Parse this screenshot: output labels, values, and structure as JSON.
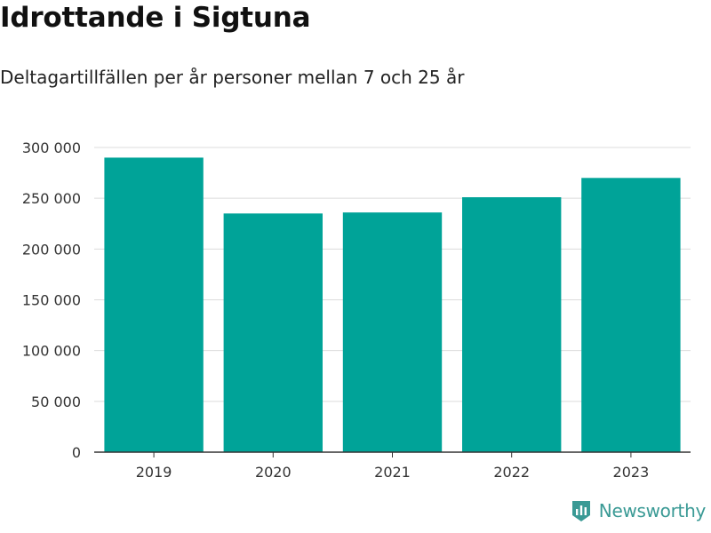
{
  "header": {
    "title": "Idrottande i Sigtuna",
    "subtitle": "Deltagartillfällen per år personer mellan 7 och 25 år"
  },
  "chart_data": {
    "type": "bar",
    "title": "Idrottande i Sigtuna",
    "subtitle": "Deltagartillfällen per år personer mellan 7 och 25 år",
    "categories": [
      "2019",
      "2020",
      "2021",
      "2022",
      "2023"
    ],
    "values": [
      290000,
      235000,
      236000,
      251000,
      270000
    ],
    "xlabel": "",
    "ylabel": "",
    "ylim": [
      0,
      300000
    ],
    "yticks": [
      0,
      50000,
      100000,
      150000,
      200000,
      250000,
      300000
    ],
    "ytick_labels": [
      "0",
      "50 000",
      "100 000",
      "150 000",
      "200 000",
      "250 000",
      "300 000"
    ],
    "grid": true,
    "legend": "none",
    "bar_color": "#00a398"
  },
  "branding": {
    "name": "Newsworthy",
    "logo_icon": "newsworthy-logo-icon",
    "color": "#3a9a95"
  }
}
